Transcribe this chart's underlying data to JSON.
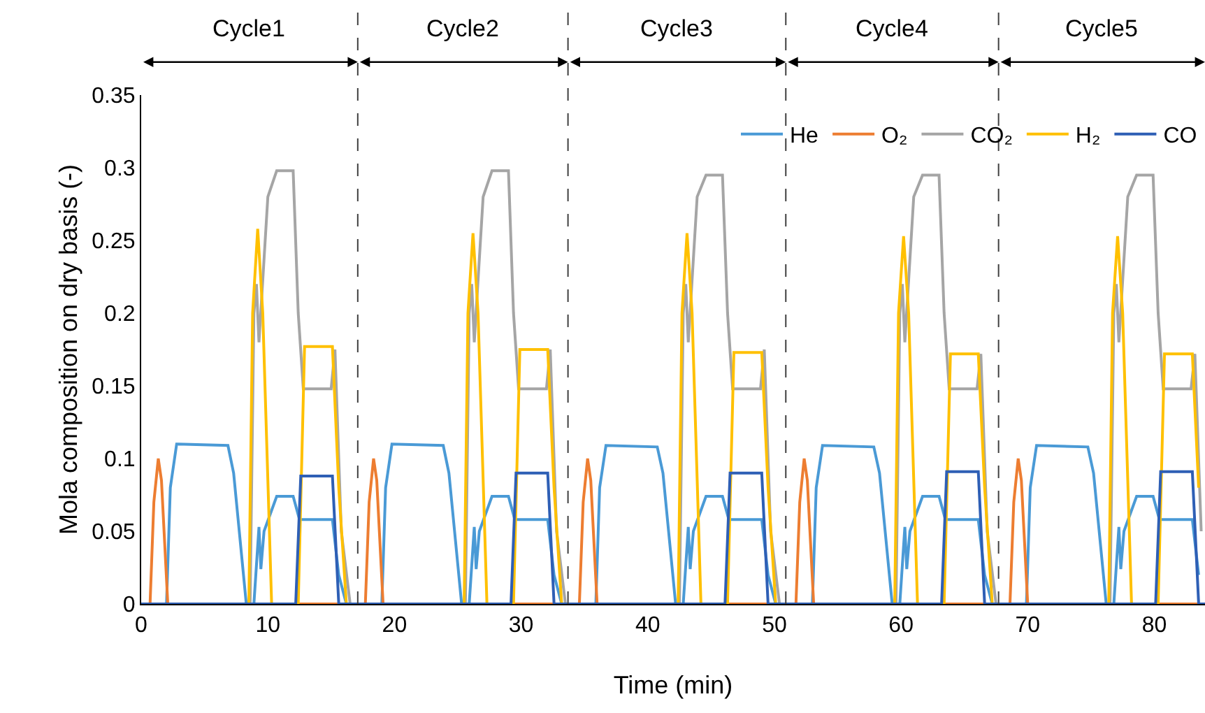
{
  "chart_data": {
    "type": "line",
    "xlabel": "Time (min)",
    "ylabel": "Mola composition on dry basis (-)",
    "xlim": [
      0,
      84
    ],
    "xticks": [
      0,
      10,
      20,
      30,
      40,
      50,
      60,
      70,
      80
    ],
    "ylim": [
      0,
      0.35
    ],
    "yticks": [
      0,
      0.05,
      0.1,
      0.15,
      0.2,
      0.25,
      0.3,
      0.35
    ],
    "grid": false,
    "legend": "top right",
    "marker": "none",
    "line_style": "solid",
    "series": [
      {
        "name": "He",
        "color": "#4a9ad6",
        "x": [
          0,
          2.0,
          2.3,
          2.8,
          6.85,
          7.3,
          8.3,
          8.9,
          9.3,
          9.45,
          9.7,
          10.7,
          12.0,
          12.5,
          15.1,
          15.6,
          16.2,
          19.0,
          19.3,
          19.8,
          23.85,
          24.3,
          25.3,
          25.9,
          26.3,
          26.45,
          26.7,
          27.7,
          29.0,
          29.5,
          32.1,
          32.6,
          33.2,
          35.9,
          36.2,
          36.7,
          40.75,
          41.2,
          42.2,
          42.8,
          43.2,
          43.35,
          43.6,
          44.6,
          45.9,
          46.4,
          49.0,
          49.5,
          50.1,
          53.0,
          53.3,
          53.8,
          57.85,
          58.3,
          59.3,
          59.9,
          60.3,
          60.45,
          60.7,
          61.7,
          63.0,
          63.5,
          66.1,
          66.6,
          67.2,
          69.9,
          70.2,
          70.7,
          74.75,
          75.2,
          76.2,
          76.8,
          77.2,
          77.35,
          77.6,
          78.6,
          79.9,
          80.4,
          83.0,
          83.5
        ],
        "values": [
          0,
          0,
          0.08,
          0.11,
          0.109,
          0.09,
          0,
          0,
          0.053,
          0.024,
          0.05,
          0.074,
          0.074,
          0.058,
          0.058,
          0.02,
          0,
          0,
          0.08,
          0.11,
          0.109,
          0.09,
          0,
          0,
          0.053,
          0.024,
          0.05,
          0.074,
          0.074,
          0.058,
          0.058,
          0.02,
          0,
          0,
          0.08,
          0.109,
          0.108,
          0.09,
          0,
          0,
          0.053,
          0.024,
          0.05,
          0.074,
          0.074,
          0.058,
          0.058,
          0.02,
          0,
          0,
          0.08,
          0.109,
          0.108,
          0.09,
          0,
          0,
          0.053,
          0.024,
          0.05,
          0.074,
          0.074,
          0.058,
          0.058,
          0.02,
          0,
          0,
          0.08,
          0.109,
          0.108,
          0.09,
          0,
          0,
          0.053,
          0.024,
          0.05,
          0.074,
          0.074,
          0.058,
          0.058,
          0.02
        ]
      },
      {
        "name": "O₂",
        "color": "#ed7d31",
        "x": [
          0,
          0.7,
          1.0,
          1.35,
          1.6,
          2.1,
          17.7,
          18.0,
          18.35,
          18.6,
          19.1,
          34.6,
          34.9,
          35.25,
          35.5,
          36.0,
          51.7,
          52.0,
          52.35,
          52.6,
          53.1,
          68.6,
          68.9,
          69.25,
          69.5,
          70.0,
          84
        ],
        "values": [
          0,
          0,
          0.07,
          0.1,
          0.085,
          0,
          0,
          0.07,
          0.1,
          0.085,
          0,
          0,
          0.07,
          0.1,
          0.085,
          0,
          0,
          0.07,
          0.1,
          0.085,
          0,
          0,
          0.07,
          0.1,
          0.085,
          0,
          0
        ]
      },
      {
        "name": "CO₂",
        "color": "#a5a5a5",
        "x": [
          0,
          8.6,
          8.9,
          9.1,
          9.3,
          10.0,
          10.7,
          12.0,
          12.4,
          12.8,
          15.0,
          15.3,
          15.8,
          16.5,
          25.6,
          25.9,
          26.1,
          26.3,
          27.0,
          27.7,
          29.0,
          29.4,
          29.8,
          32.0,
          32.3,
          32.8,
          33.5,
          42.5,
          42.8,
          43.0,
          43.2,
          43.9,
          44.6,
          45.9,
          46.3,
          46.7,
          48.9,
          49.2,
          49.7,
          50.4,
          59.6,
          59.9,
          60.1,
          60.3,
          61.0,
          61.7,
          63.0,
          63.4,
          63.8,
          66.0,
          66.3,
          66.8,
          67.5,
          76.5,
          76.8,
          77.0,
          77.2,
          77.9,
          78.6,
          79.9,
          80.3,
          80.7,
          82.9,
          83.2,
          83.7
        ],
        "values": [
          0,
          0,
          0.2,
          0.22,
          0.18,
          0.28,
          0.298,
          0.298,
          0.2,
          0.148,
          0.148,
          0.175,
          0.05,
          0,
          0,
          0.2,
          0.22,
          0.18,
          0.28,
          0.298,
          0.298,
          0.2,
          0.148,
          0.148,
          0.175,
          0.05,
          0,
          0,
          0.2,
          0.22,
          0.18,
          0.28,
          0.295,
          0.295,
          0.2,
          0.148,
          0.148,
          0.175,
          0.05,
          0,
          0,
          0.2,
          0.22,
          0.18,
          0.28,
          0.295,
          0.295,
          0.2,
          0.148,
          0.148,
          0.172,
          0.05,
          0,
          0,
          0.2,
          0.22,
          0.18,
          0.28,
          0.295,
          0.295,
          0.2,
          0.148,
          0.148,
          0.172,
          0.05
        ]
      },
      {
        "name": "H₂",
        "color": "#ffc000",
        "x": [
          0,
          8.5,
          8.8,
          9.2,
          9.6,
          10.3,
          12.4,
          12.9,
          15.1,
          15.6,
          16.2,
          25.5,
          25.8,
          26.2,
          26.6,
          27.3,
          29.4,
          29.9,
          32.1,
          32.6,
          33.2,
          42.4,
          42.7,
          43.1,
          43.5,
          44.2,
          46.3,
          46.8,
          49.0,
          49.5,
          50.1,
          59.5,
          59.8,
          60.2,
          60.6,
          61.3,
          63.4,
          63.9,
          66.1,
          66.6,
          67.2,
          76.4,
          76.7,
          77.1,
          77.5,
          78.2,
          80.3,
          80.8,
          83.0,
          83.5
        ],
        "values": [
          0,
          0,
          0.2,
          0.258,
          0.2,
          0,
          0,
          0.177,
          0.177,
          0.08,
          0,
          0,
          0.2,
          0.255,
          0.2,
          0,
          0,
          0.175,
          0.175,
          0.08,
          0,
          0,
          0.2,
          0.255,
          0.2,
          0,
          0,
          0.173,
          0.173,
          0.08,
          0,
          0,
          0.2,
          0.253,
          0.2,
          0,
          0,
          0.172,
          0.172,
          0.08,
          0,
          0,
          0.2,
          0.253,
          0.2,
          0,
          0,
          0.172,
          0.172,
          0.08
        ]
      },
      {
        "name": "CO",
        "color": "#2e5fb5",
        "x": [
          0,
          12.2,
          12.6,
          15.1,
          15.6,
          29.2,
          29.6,
          32.1,
          32.6,
          46.1,
          46.5,
          49.0,
          49.5,
          63.2,
          63.6,
          66.1,
          66.6,
          80.1,
          80.5,
          83.0,
          83.5,
          84
        ],
        "values": [
          0,
          0,
          0.088,
          0.088,
          0,
          0,
          0.09,
          0.09,
          0,
          0,
          0.09,
          0.09,
          0,
          0,
          0.091,
          0.091,
          0,
          0,
          0.091,
          0.091,
          0,
          0
        ]
      }
    ],
    "ref_lines": [
      {
        "axis": "x",
        "value": 17.1,
        "label": null,
        "color": "#404040",
        "line_style": "dashed"
      },
      {
        "axis": "x",
        "value": 33.7,
        "label": null,
        "color": "#404040",
        "line_style": "dashed"
      },
      {
        "axis": "x",
        "value": 50.9,
        "label": null,
        "color": "#404040",
        "line_style": "dashed"
      },
      {
        "axis": "x",
        "value": 67.7,
        "label": null,
        "color": "#404040",
        "line_style": "dashed"
      }
    ],
    "annotations": [
      "Cycle1",
      "Cycle2",
      "Cycle3",
      "Cycle4",
      "Cycle5"
    ]
  }
}
